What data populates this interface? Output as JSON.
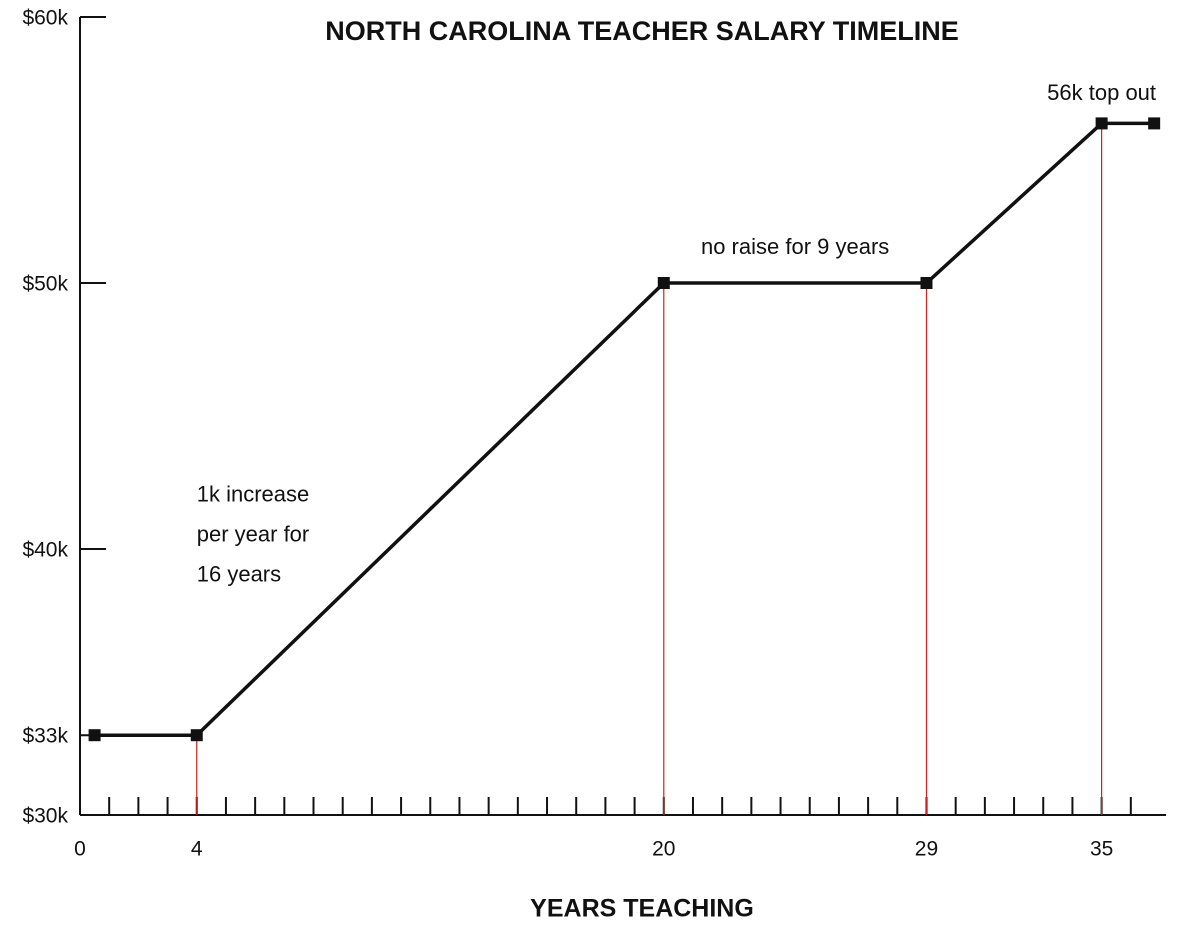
{
  "chart_data": {
    "type": "line",
    "title": "NORTH CAROLINA TEACHER SALARY TIMELINE",
    "x_label": "YEARS TEACHING",
    "x": [
      0.5,
      4,
      20,
      29,
      35,
      36.8
    ],
    "series": [
      {
        "color": "#111111",
        "values": [
          33,
          33,
          50,
          50,
          56,
          56
        ]
      }
    ],
    "xlim": [
      0,
      37
    ],
    "xticks": [
      0,
      4,
      20,
      29,
      35
    ],
    "xminorticks": [
      1,
      2,
      3,
      4,
      5,
      6,
      7,
      8,
      9,
      10,
      11,
      12,
      13,
      14,
      15,
      16,
      17,
      18,
      19,
      20,
      21,
      22,
      23,
      24,
      25,
      26,
      27,
      28,
      29,
      30,
      31,
      32,
      33,
      34,
      35,
      36
    ],
    "ylim": [
      30,
      60
    ],
    "yticks": [
      {
        "value": 30,
        "label": "$30k"
      },
      {
        "value": 33,
        "label": "$33k"
      },
      {
        "value": 40,
        "label": "$40k"
      },
      {
        "value": 50,
        "label": "$50k"
      },
      {
        "value": 60,
        "label": "$60k"
      }
    ],
    "drop_line_color": "#cc2222",
    "annotations": [
      {
        "x": 4,
        "y": 42,
        "lines": [
          "1k increase",
          "per year for",
          "16 years"
        ]
      },
      {
        "x": 24.5,
        "y": 51.3,
        "lines": [
          "no raise for 9 years"
        ]
      },
      {
        "x": 35,
        "y": 57.1,
        "lines": [
          "56k top out"
        ]
      }
    ]
  }
}
